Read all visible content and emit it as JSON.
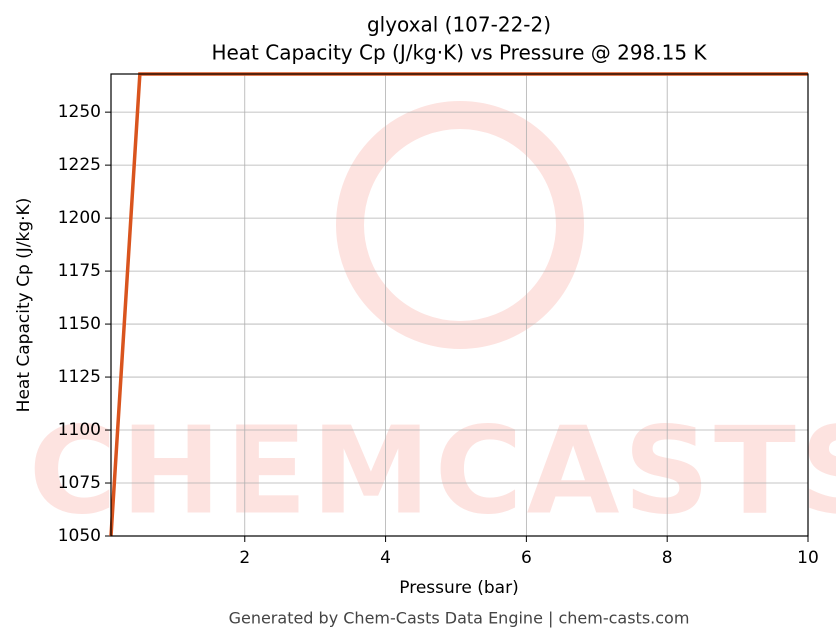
{
  "chart_data": {
    "type": "line",
    "title": "glyoxal (107-22-2)",
    "subtitle": "Heat Capacity Cp (J/kg·K) vs Pressure @ 298.15 K",
    "x_label": "Pressure (bar)",
    "y_label": "Heat Capacity Cp (J/kg·K)",
    "watermark": "CHEMCASTS",
    "footer": "Generated by Chem-Casts Data Engine | chem-casts.com",
    "x": [
      0.1,
      0.51,
      10
    ],
    "series": [
      {
        "name": "Cp",
        "color": "#d9541e",
        "values": [
          1050,
          1268,
          1268
        ]
      }
    ],
    "xlim": [
      0.1,
      10
    ],
    "xticks": [
      2,
      4,
      6,
      8,
      10
    ],
    "ylim": [
      1050,
      1268
    ],
    "yticks": [
      1050,
      1075,
      1100,
      1125,
      1150,
      1175,
      1200,
      1225,
      1250
    ],
    "grid": true
  }
}
